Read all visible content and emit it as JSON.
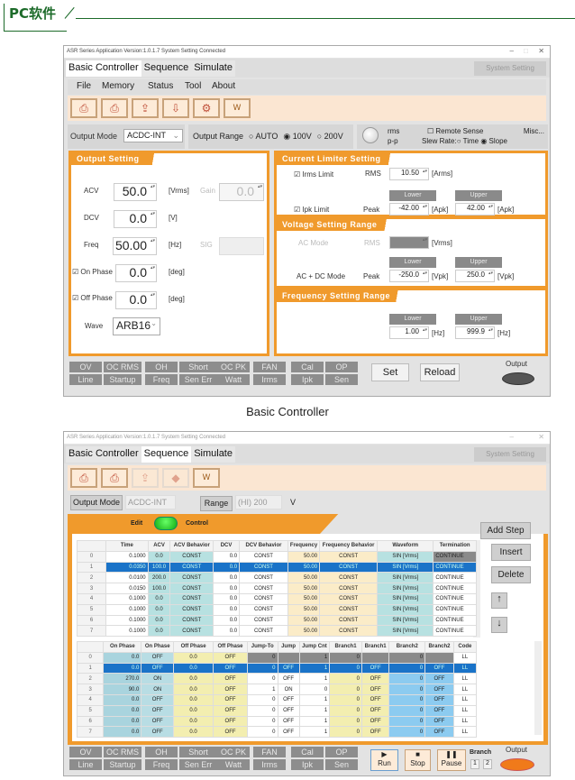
{
  "header": {
    "title": "PC软件"
  },
  "window1": {
    "title": "ASR Series Application Version:1.0.1.7 System Setting Connected",
    "tabs": [
      "Basic Controller",
      "Sequence",
      "Simulate"
    ],
    "active_tab": "Basic Controller",
    "system_setting": "System Setting",
    "menu": [
      "File",
      "Memory",
      "Status",
      "Tool",
      "About"
    ],
    "toolbar_icons": [
      "load-icon",
      "save-icon",
      "upload-icon",
      "download-icon",
      "settings-icon",
      "waveform-icon"
    ],
    "output_mode_label": "Output Mode",
    "output_mode": "ACDC-INT",
    "output_range_label": "Output Range",
    "range_options": [
      "AUTO",
      "100V",
      "200V"
    ],
    "range_selected": "100V",
    "rms": "rms",
    "pp": "p-p",
    "remote_sense": "Remote Sense",
    "misc": "Misc...",
    "slew_label": "Slew Rate:",
    "slew_options": [
      "Time",
      "Slope"
    ],
    "slew_selected": "Slope",
    "output_setting": {
      "title": "Output Setting",
      "acv_label": "ACV",
      "acv": "50.0",
      "acv_unit": "[Vrms]",
      "gain_label": "Gain",
      "gain": "0.0",
      "dcv_label": "DCV",
      "dcv": "0.0",
      "dcv_unit": "[V]",
      "freq_label": "Freq",
      "freq": "50.00",
      "freq_unit": "[Hz]",
      "sig_label": "SIG",
      "on_phase_label": "On Phase",
      "on_phase": "0.0",
      "off_phase_label": "Off Phase",
      "off_phase": "0.0",
      "deg": "[deg]",
      "wave_label": "Wave",
      "wave": "ARB16"
    },
    "current_limiter": {
      "title": "Current Limiter Setting",
      "irms_label": "Irms Limit",
      "rms_label": "RMS",
      "irms": "10.50",
      "irms_unit": "[Arms]",
      "ipk_label": "Ipk Limit",
      "peak_label": "Peak",
      "lower": "Lower",
      "upper": "Upper",
      "ipk_lower": "-42.00",
      "ipk_upper": "42.00",
      "apk": "[Apk]"
    },
    "voltage_range": {
      "title": "Voltage Setting Range",
      "ac_mode": "AC Mode",
      "rms_label": "RMS",
      "vrms": "[Vrms]",
      "acdc_mode": "AC + DC Mode",
      "peak_label": "Peak",
      "lower": "Lower",
      "upper": "Upper",
      "v_lower": "-250.0",
      "v_upper": "250.0",
      "vpk": "[Vpk]"
    },
    "freq_range": {
      "title": "Frequency Setting Range",
      "lower": "Lower",
      "upper": "Upper",
      "f_lower": "1.00",
      "f_upper": "999.9",
      "hz": "[Hz]"
    },
    "status": [
      "OV",
      "OC RMS",
      "OH",
      "Short",
      "OC PK",
      "FAN",
      "Cal",
      "OP",
      "Line",
      "Startup",
      "Freq",
      "Sen Err",
      "Watt",
      "Irms",
      "Ipk",
      "Sen"
    ],
    "set": "Set",
    "reload": "Reload",
    "output": "Output",
    "output_color": "#555555"
  },
  "caption": "Basic Controller",
  "window2": {
    "title": "ASR Series Application Version:1.0.1.7 System Setting Connected",
    "tabs": [
      "Basic Controller",
      "Sequence",
      "Simulate"
    ],
    "active_tab": "Sequence",
    "system_setting": "System Setting",
    "output_mode_label": "Output Mode",
    "output_mode": "ACDC-INT",
    "range_label": "Range",
    "range": "(HI) 200",
    "v": "V",
    "edit": "Edit",
    "control": "Control",
    "add_step": "Add Step",
    "insert": "Insert",
    "delete": "Delete",
    "table1": {
      "headers": [
        "",
        "Time",
        "ACV",
        "ACV Behavior",
        "DCV",
        "DCV Behavior",
        "Frequency",
        "Frequency Behavior",
        "Waveform",
        "Termination"
      ],
      "rows": [
        [
          "0",
          "0.1000",
          "0.0",
          "CONST",
          "0.0",
          "CONST",
          "50.00",
          "CONST",
          "SIN [Vrms]",
          "CONTINUE"
        ],
        [
          "1",
          "0.0350",
          "100.0",
          "CONST",
          "0.0",
          "CONST",
          "50.00",
          "CONST",
          "SIN [Vrms]",
          "CONTINUE"
        ],
        [
          "2",
          "0.0100",
          "200.0",
          "CONST",
          "0.0",
          "CONST",
          "50.00",
          "CONST",
          "SIN [Vrms]",
          "CONTINUE"
        ],
        [
          "3",
          "0.0150",
          "100.0",
          "CONST",
          "0.0",
          "CONST",
          "50.00",
          "CONST",
          "SIN [Vrms]",
          "CONTINUE"
        ],
        [
          "4",
          "0.1000",
          "0.0",
          "CONST",
          "0.0",
          "CONST",
          "50.00",
          "CONST",
          "SIN [Vrms]",
          "CONTINUE"
        ],
        [
          "5",
          "0.1000",
          "0.0",
          "CONST",
          "0.0",
          "CONST",
          "50.00",
          "CONST",
          "SIN [Vrms]",
          "CONTINUE"
        ],
        [
          "6",
          "0.1000",
          "0.0",
          "CONST",
          "0.0",
          "CONST",
          "50.00",
          "CONST",
          "SIN [Vrms]",
          "CONTINUE"
        ],
        [
          "7",
          "0.1000",
          "0.0",
          "CONST",
          "0.0",
          "CONST",
          "50.00",
          "CONST",
          "SIN [Vrms]",
          "CONTINUE"
        ]
      ]
    },
    "table2": {
      "headers": [
        "",
        "On Phase",
        "On Phase",
        "Off Phase",
        "Off Phase",
        "Jump-To",
        "Jump",
        "Jump Cnt",
        "Branch1",
        "Branch1",
        "Branch2",
        "Branch2",
        "Code"
      ],
      "rows": [
        [
          "0",
          "0.0",
          "OFF",
          "0.0",
          "OFF",
          "0",
          "",
          "1",
          "0",
          "",
          "0",
          "",
          "LL"
        ],
        [
          "1",
          "0.0",
          "OFF",
          "0.0",
          "OFF",
          "0",
          "OFF",
          "1",
          "0",
          "OFF",
          "0",
          "OFF",
          "LL"
        ],
        [
          "2",
          "270.0",
          "ON",
          "0.0",
          "OFF",
          "0",
          "OFF",
          "1",
          "0",
          "OFF",
          "0",
          "OFF",
          "LL"
        ],
        [
          "3",
          "90.0",
          "ON",
          "0.0",
          "OFF",
          "1",
          "ON",
          "0",
          "0",
          "OFF",
          "0",
          "OFF",
          "LL"
        ],
        [
          "4",
          "0.0",
          "OFF",
          "0.0",
          "OFF",
          "0",
          "OFF",
          "1",
          "0",
          "OFF",
          "0",
          "OFF",
          "LL"
        ],
        [
          "5",
          "0.0",
          "OFF",
          "0.0",
          "OFF",
          "0",
          "OFF",
          "1",
          "0",
          "OFF",
          "0",
          "OFF",
          "LL"
        ],
        [
          "6",
          "0.0",
          "OFF",
          "0.0",
          "OFF",
          "0",
          "OFF",
          "1",
          "0",
          "OFF",
          "0",
          "OFF",
          "LL"
        ],
        [
          "7",
          "0.0",
          "OFF",
          "0.0",
          "OFF",
          "0",
          "OFF",
          "1",
          "0",
          "OFF",
          "0",
          "OFF",
          "LL"
        ]
      ]
    },
    "selected_row": 1,
    "status": [
      "OV",
      "OC RMS",
      "OH",
      "Short",
      "OC PK",
      "FAN",
      "Cal",
      "OP",
      "Line",
      "Startup",
      "Freq",
      "Sen Err",
      "Watt",
      "Irms",
      "Ipk",
      "Sen"
    ],
    "run": "Run",
    "stop": "Stop",
    "pause": "Pause",
    "branch": "Branch",
    "branch_buttons": [
      "1",
      "2"
    ],
    "output": "Output",
    "output_color": "#f07a1a",
    "colors": {
      "accent": "#f09a2c",
      "selected": "#1a73c8"
    }
  }
}
